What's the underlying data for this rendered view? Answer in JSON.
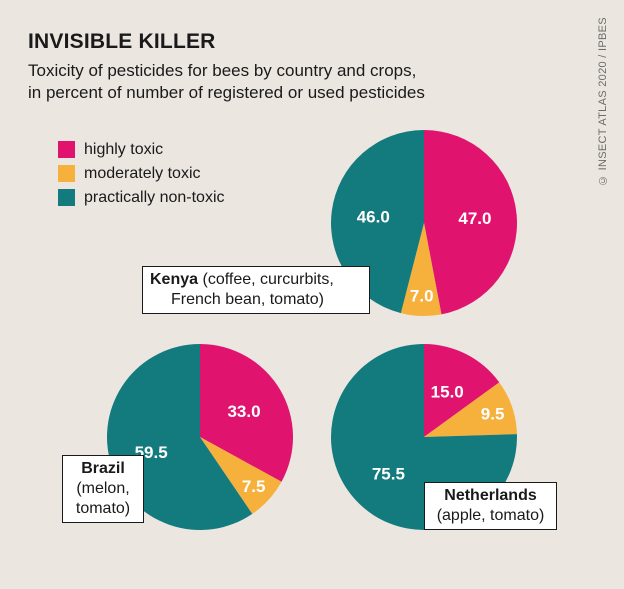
{
  "title": "INVISIBLE KILLER",
  "subtitle_line1": "Toxicity of pesticides for bees by country and crops,",
  "subtitle_line2": "in percent of number of registered or used pesticides",
  "credit": "© INSECT ATLAS 2020 / IPBES",
  "colors": {
    "highly": "#e0146e",
    "moderately": "#f6b03c",
    "nontoxic": "#137b7e",
    "background": "#ece6e1"
  },
  "legend": [
    {
      "key": "highly",
      "label": "highly toxic"
    },
    {
      "key": "moderately",
      "label": "moderately toxic"
    },
    {
      "key": "nontoxic",
      "label": "practically non-toxic"
    }
  ],
  "chart_data": {
    "type": "pie",
    "series_keys": [
      "highly",
      "moderately",
      "nontoxic"
    ],
    "pies": [
      {
        "id": "kenya",
        "country": "Kenya",
        "crops_line1": "(coffee, curcurbits,",
        "crops_line2": "French bean, tomato)",
        "values": [
          47.0,
          7.0,
          46.0
        ],
        "labels": [
          "47.0",
          "7.0",
          "46.0"
        ]
      },
      {
        "id": "brazil",
        "country": "Brazil",
        "crops_line1": "(melon,",
        "crops_line2": "tomato)",
        "values": [
          33.0,
          7.5,
          59.5
        ],
        "labels": [
          "33.0",
          "7.5",
          "59.5"
        ]
      },
      {
        "id": "netherlands",
        "country": "Netherlands",
        "crops_line1": "(apple, tomato)",
        "crops_line2": "",
        "values": [
          15.0,
          9.5,
          75.5
        ],
        "labels": [
          "15.0",
          "9.5",
          "75.5"
        ]
      }
    ]
  }
}
